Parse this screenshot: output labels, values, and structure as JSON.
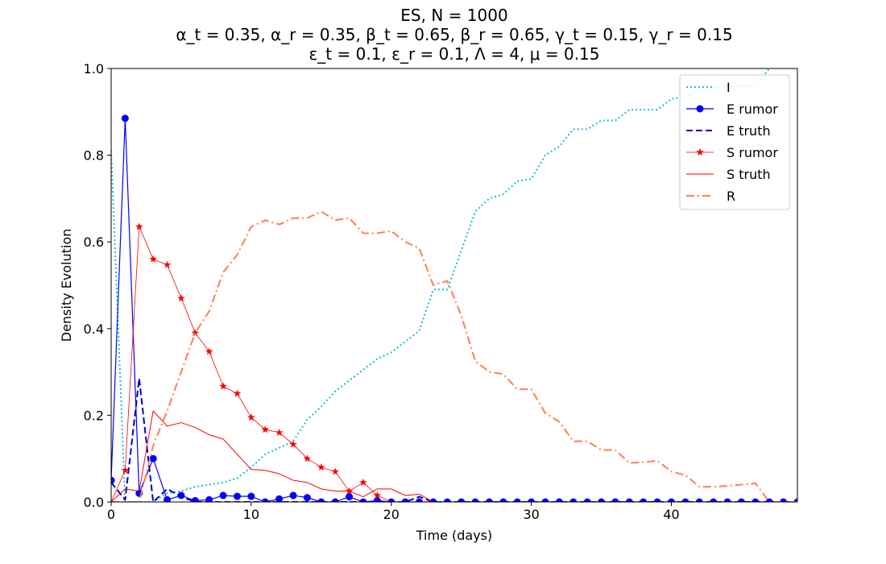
{
  "chart_data": {
    "type": "line",
    "title_lines": [
      "ES, N = 1000",
      "α_t = 0.35, α_r = 0.35, β_t = 0.65, β_r = 0.65, γ_t = 0.15, γ_r = 0.15",
      "ε_t = 0.1, ε_r = 0.1, Λ = 4, μ = 0.15"
    ],
    "xlabel": "Time (days)",
    "ylabel": "Density Evolution",
    "xlim": [
      0,
      49
    ],
    "ylim": [
      0,
      1.0
    ],
    "xticks": [
      0,
      10,
      20,
      30,
      40
    ],
    "yticks": [
      0.0,
      0.2,
      0.4,
      0.6,
      0.8,
      1.0
    ],
    "xtick_labels": [
      "0",
      "10",
      "20",
      "30",
      "40"
    ],
    "ytick_labels": [
      "0.0",
      "0.2",
      "0.4",
      "0.6",
      "0.8",
      "1.0"
    ],
    "grid": false,
    "legend_position": "top-right",
    "x": [
      0,
      1,
      2,
      3,
      4,
      5,
      6,
      7,
      8,
      9,
      10,
      11,
      12,
      13,
      14,
      15,
      16,
      17,
      18,
      19,
      20,
      21,
      22,
      23,
      24,
      25,
      26,
      27,
      28,
      29,
      30,
      31,
      32,
      33,
      34,
      35,
      36,
      37,
      38,
      39,
      40,
      41,
      42,
      43,
      44,
      45,
      46,
      47,
      48,
      49
    ],
    "series": [
      {
        "name": "I",
        "color": "#17becf",
        "style": "dotted",
        "marker": "none",
        "width": 2,
        "values": [
          0.81,
          0.0,
          0.0,
          0.0,
          0.02,
          0.025,
          0.035,
          0.04,
          0.045,
          0.055,
          0.08,
          0.11,
          0.125,
          0.14,
          0.19,
          0.22,
          0.255,
          0.28,
          0.305,
          0.33,
          0.345,
          0.37,
          0.395,
          0.49,
          0.49,
          0.58,
          0.67,
          0.7,
          0.71,
          0.74,
          0.745,
          0.8,
          0.82,
          0.86,
          0.86,
          0.88,
          0.88,
          0.905,
          0.905,
          0.905,
          0.93,
          0.935,
          0.95,
          0.955,
          0.96,
          0.96,
          0.96,
          1.0,
          1.05,
          1.1
        ]
      },
      {
        "name": "E rumor",
        "color": "#0000ff",
        "style": "solid",
        "marker": "circle",
        "width": 1.2,
        "values": [
          0.05,
          0.885,
          0.02,
          0.1,
          0.005,
          0.015,
          0.003,
          0.005,
          0.015,
          0.013,
          0.013,
          0.0,
          0.007,
          0.015,
          0.01,
          0.0,
          0.0,
          0.012,
          0.0,
          0.003,
          0,
          0,
          0,
          0,
          0,
          0,
          0,
          0,
          0,
          0,
          0,
          0,
          0,
          0,
          0,
          0,
          0,
          0,
          0,
          0,
          0,
          0,
          0,
          0,
          0,
          0,
          0,
          0,
          0,
          0
        ]
      },
      {
        "name": "E truth",
        "color": "#0000cc",
        "style": "dashed",
        "marker": "none",
        "width": 2,
        "values": [
          0.045,
          0.005,
          0.285,
          0.0,
          0.03,
          0.012,
          0.0,
          0.0,
          0.0,
          0.0,
          0.0,
          0.0,
          0.0,
          0.0,
          0.0,
          0.0,
          0.0,
          0.0,
          0.0,
          0.0,
          0.0,
          0.0,
          0.012,
          0,
          0,
          0,
          0,
          0,
          0,
          0,
          0,
          0,
          0,
          0,
          0,
          0,
          0,
          0,
          0,
          0,
          0,
          0,
          0,
          0,
          0,
          0,
          0,
          0,
          0,
          0
        ]
      },
      {
        "name": "S rumor",
        "color": "#ff0000",
        "style": "solid",
        "marker": "star",
        "width": 0.8,
        "values": [
          0.0,
          0.073,
          0.635,
          0.56,
          0.547,
          0.47,
          0.39,
          0.347,
          0.267,
          0.25,
          0.195,
          0.167,
          0.16,
          0.133,
          0.1,
          0.08,
          0.07,
          0.025,
          0.045,
          0.015,
          0,
          0,
          0,
          0,
          0,
          0,
          0,
          0,
          0,
          0,
          0,
          0,
          0,
          0,
          0,
          0,
          0,
          0,
          0,
          0,
          0,
          0,
          0,
          0,
          0,
          0,
          0,
          0,
          0,
          0
        ]
      },
      {
        "name": "S truth",
        "color": "#ff0000",
        "style": "solid",
        "marker": "none",
        "width": 1,
        "values": [
          0.0,
          0.03,
          0.025,
          0.21,
          0.175,
          0.183,
          0.172,
          0.155,
          0.145,
          0.11,
          0.075,
          0.073,
          0.065,
          0.05,
          0.045,
          0.03,
          0.025,
          0.025,
          0.012,
          0.03,
          0.03,
          0.015,
          0.018,
          0.0,
          0,
          0,
          0,
          0,
          0,
          0,
          0,
          0,
          0,
          0,
          0,
          0,
          0,
          0,
          0,
          0,
          0,
          0,
          0,
          0,
          0,
          0,
          0,
          0,
          0,
          0
        ]
      },
      {
        "name": "R",
        "color": "#ff7f50",
        "style": "dashdot",
        "marker": "none",
        "width": 2,
        "values": [
          0.0,
          0.0,
          0.0,
          0.13,
          0.21,
          0.3,
          0.39,
          0.44,
          0.53,
          0.57,
          0.635,
          0.65,
          0.64,
          0.655,
          0.655,
          0.67,
          0.65,
          0.655,
          0.62,
          0.62,
          0.625,
          0.6,
          0.585,
          0.5,
          0.51,
          0.43,
          0.325,
          0.3,
          0.295,
          0.26,
          0.26,
          0.205,
          0.185,
          0.14,
          0.14,
          0.12,
          0.12,
          0.09,
          0.092,
          0.095,
          0.07,
          0.062,
          0.035,
          0.035,
          0.037,
          0.04,
          0.043,
          0.0,
          0.0,
          0.0
        ]
      }
    ]
  }
}
